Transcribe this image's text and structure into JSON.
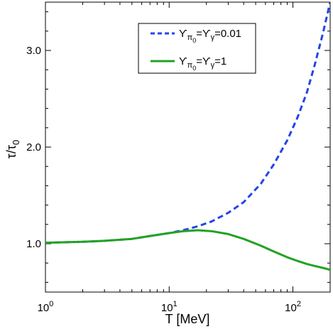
{
  "chart_data": {
    "type": "line",
    "xscale": "log",
    "xlim": [
      1,
      200
    ],
    "ylim": [
      0.5,
      3.5
    ],
    "xlabel": "T [MeV]",
    "ylabel_main": "τ/τ",
    "ylabel_sub": "0",
    "x_ticks": [
      {
        "value": 1,
        "base": "10",
        "exp": "0"
      },
      {
        "value": 10,
        "base": "10",
        "exp": "1"
      },
      {
        "value": 100,
        "base": "10",
        "exp": "2"
      }
    ],
    "y_ticks": [
      {
        "value": 1.0,
        "label": "1.0"
      },
      {
        "value": 2.0,
        "label": "2.0"
      },
      {
        "value": 3.0,
        "label": "3.0"
      }
    ],
    "legend_position": "top-right",
    "series": [
      {
        "name": "ϒπ0=ϒγ=0.01",
        "legend_parts": {
          "a": "ϒ",
          "a_sub": "π",
          "a_subsub": "0",
          "eq1": "=ϒ",
          "b_sub": "γ",
          "eq2": "=0.01"
        },
        "color": "#2244ee",
        "style": "dashed",
        "x": [
          1,
          2,
          3,
          5,
          7,
          10,
          13,
          17,
          22,
          30,
          40,
          55,
          70,
          90,
          110,
          130,
          150,
          175,
          200
        ],
        "y": [
          1.01,
          1.02,
          1.03,
          1.05,
          1.08,
          1.11,
          1.14,
          1.18,
          1.23,
          1.32,
          1.43,
          1.62,
          1.82,
          2.07,
          2.32,
          2.57,
          2.85,
          3.18,
          3.5
        ]
      },
      {
        "name": "ϒπ0=ϒγ=1",
        "legend_parts": {
          "a": "ϒ",
          "a_sub": "π",
          "a_subsub": "0",
          "eq1": "=ϒ",
          "b_sub": "γ",
          "eq2": "=1"
        },
        "color": "#22a222",
        "style": "solid",
        "x": [
          1,
          2,
          3,
          5,
          7,
          10,
          13,
          17,
          22,
          30,
          40,
          55,
          70,
          90,
          110,
          130,
          150,
          175,
          200
        ],
        "y": [
          1.01,
          1.02,
          1.03,
          1.05,
          1.08,
          1.11,
          1.13,
          1.14,
          1.13,
          1.1,
          1.05,
          0.98,
          0.92,
          0.86,
          0.82,
          0.79,
          0.77,
          0.75,
          0.73
        ]
      }
    ]
  }
}
